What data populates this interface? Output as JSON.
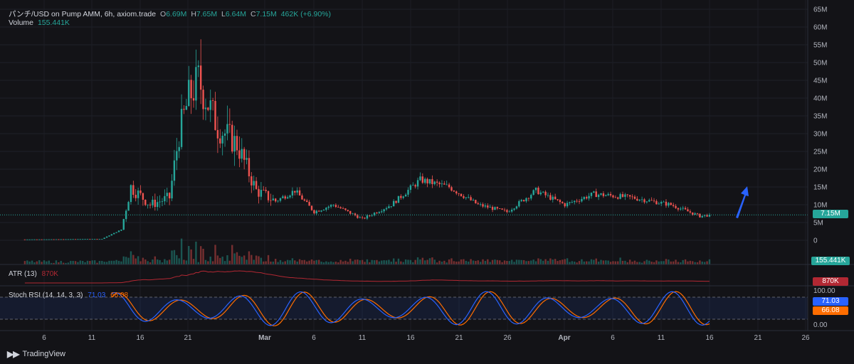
{
  "header": {
    "symbol": "パンチ/USD on Pump AMM, 6h, axiom.trade",
    "o_label": "O",
    "o_value": "6.69M",
    "h_label": "H",
    "h_value": "7.65M",
    "l_label": "L",
    "l_value": "6.64M",
    "c_label": "C",
    "c_value": "7.15M",
    "change": "462K (+6.90%)",
    "volume_label": "Volume",
    "volume_value": "155.441K"
  },
  "indicators": {
    "atr_label": "ATR (13)",
    "atr_value": "870K",
    "stoch_label": "Stoch RSI (14, 14, 3, 3)",
    "stoch_k": "71.03",
    "stoch_d": "66.08"
  },
  "price_scale": {
    "ticks": [
      "65M",
      "60M",
      "55M",
      "50M",
      "45M",
      "40M",
      "35M",
      "30M",
      "25M",
      "20M",
      "15M",
      "10M",
      "5M",
      "0"
    ],
    "last_price": "7.15M",
    "last_volume": "155.441K"
  },
  "stoch_scale": {
    "ticks": [
      "100.00",
      "0.00"
    ]
  },
  "time_axis": {
    "labels": [
      "6",
      "11",
      "16",
      "21",
      "Mar",
      "6",
      "11",
      "16",
      "21",
      "26",
      "Apr",
      "6",
      "11",
      "16",
      "21",
      "26"
    ]
  },
  "branding": {
    "logo_text": "TradingView"
  },
  "colors": {
    "up": "#26a69a",
    "down": "#ef5350",
    "stoch_k": "#2962ff",
    "stoch_d": "#ff6d00",
    "atr": "#b22833",
    "arrow": "#2962ff"
  },
  "chart_data": {
    "type": "candlestick",
    "interval": "6h",
    "ylim": [
      0,
      65000000
    ],
    "candles_approx": [
      {
        "date": "Feb 4",
        "close": 250000
      },
      {
        "date": "Feb 8",
        "close": 300000
      },
      {
        "date": "Feb 12",
        "close": 400000
      },
      {
        "date": "Feb 14",
        "close": 3000000
      },
      {
        "date": "Feb 15",
        "close": 15000000
      },
      {
        "date": "Feb 17",
        "close": 10000000
      },
      {
        "date": "Feb 19",
        "close": 12000000
      },
      {
        "date": "Feb 20",
        "close": 30000000
      },
      {
        "date": "Feb 21",
        "close": 40000000
      },
      {
        "date": "Feb 22",
        "close": 45000000
      },
      {
        "date": "Feb 24",
        "close": 32000000
      },
      {
        "date": "Feb 26",
        "close": 27000000
      },
      {
        "date": "Feb 28",
        "close": 14000000
      },
      {
        "date": "Mar 2",
        "close": 11000000
      },
      {
        "date": "Mar 4",
        "close": 14000000
      },
      {
        "date": "Mar 6",
        "close": 8000000
      },
      {
        "date": "Mar 8",
        "close": 10000000
      },
      {
        "date": "Mar 11",
        "close": 6000000
      },
      {
        "date": "Mar 14",
        "close": 10000000
      },
      {
        "date": "Mar 17",
        "close": 17000000
      },
      {
        "date": "Mar 20",
        "close": 15000000
      },
      {
        "date": "Mar 23",
        "close": 10000000
      },
      {
        "date": "Mar 26",
        "close": 8000000
      },
      {
        "date": "Mar 29",
        "close": 14000000
      },
      {
        "date": "Apr 1",
        "close": 10000000
      },
      {
        "date": "Apr 4",
        "close": 13000000
      },
      {
        "date": "Apr 8",
        "close": 12000000
      },
      {
        "date": "Apr 12",
        "close": 10000000
      },
      {
        "date": "Apr 15",
        "close": 6800000
      },
      {
        "date": "Apr 16",
        "close": 7150000
      }
    ],
    "last_close": 7150000,
    "stoch_rsi": {
      "k": 71.03,
      "d": 66.08,
      "range": [
        0,
        100
      ]
    },
    "atr": 870000
  }
}
